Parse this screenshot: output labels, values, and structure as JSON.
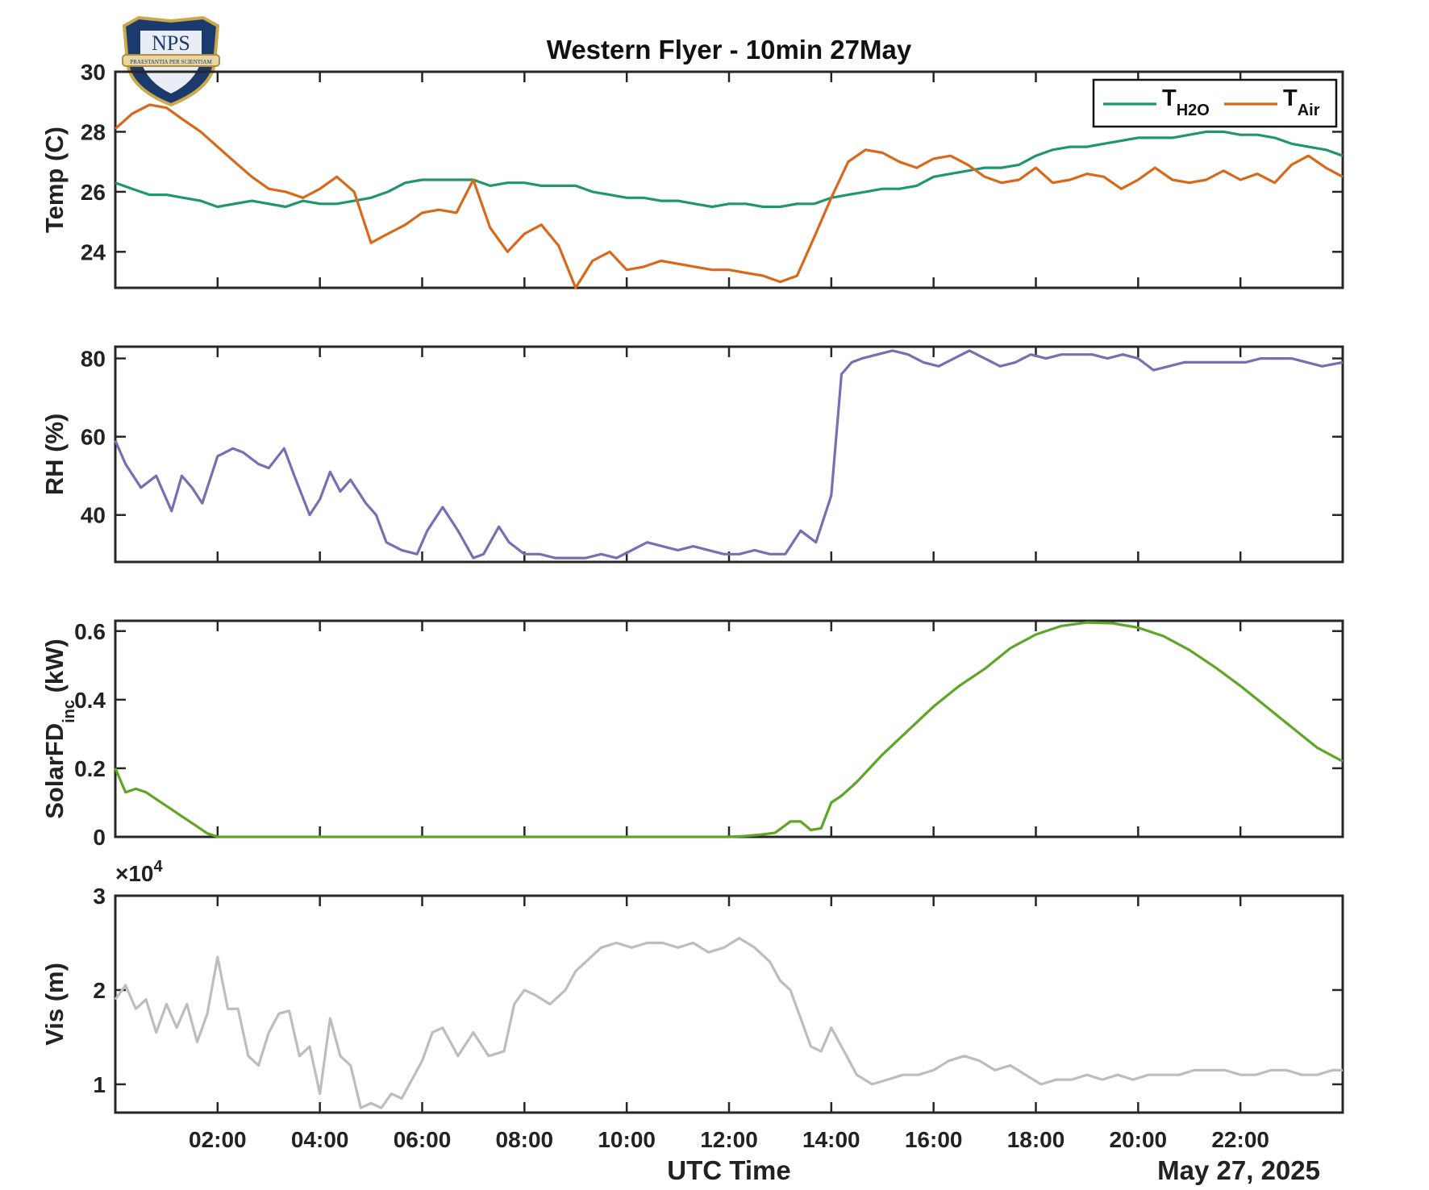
{
  "figure": {
    "title": "Western Flyer - 10min 27May",
    "xlabel": "UTC Time",
    "date_label": "May 27, 2025",
    "x_ticks": [
      "02:00",
      "04:00",
      "06:00",
      "08:00",
      "10:00",
      "12:00",
      "14:00",
      "16:00",
      "18:00",
      "20:00",
      "22:00"
    ],
    "logo": {
      "name": "NPS",
      "motto": "PRAESTANTIA PER SCIENTIAM"
    }
  },
  "colors": {
    "t_h2o": "#1f9670",
    "t_air": "#d9691a",
    "rh": "#7670b3",
    "solar": "#5ea626",
    "vis": "#bdbdbd"
  },
  "chart_data": [
    {
      "type": "line",
      "ylabel": "Temp (C)",
      "ylim": [
        22.8,
        30
      ],
      "yticks": [
        24,
        26,
        28,
        30
      ],
      "xlim_hours": [
        0,
        24
      ],
      "legend": {
        "position": "top-right",
        "entries": [
          {
            "main": "T",
            "sub": "H2O"
          },
          {
            "main": "T",
            "sub": "Air"
          }
        ]
      },
      "series": [
        {
          "name": "T_H2O",
          "color_key": "t_h2o",
          "x": [
            0,
            0.33,
            0.67,
            1,
            1.33,
            1.67,
            2,
            2.33,
            2.67,
            3,
            3.33,
            3.67,
            4,
            4.33,
            4.67,
            5,
            5.33,
            5.67,
            6,
            6.33,
            6.67,
            7,
            7.33,
            7.67,
            8,
            8.33,
            8.67,
            9,
            9.33,
            9.67,
            10,
            10.33,
            10.67,
            11,
            11.33,
            11.67,
            12,
            12.33,
            12.67,
            13,
            13.33,
            13.67,
            14,
            14.33,
            14.67,
            15,
            15.33,
            15.67,
            16,
            16.33,
            16.67,
            17,
            17.33,
            17.67,
            18,
            18.33,
            18.67,
            19,
            19.33,
            19.67,
            20,
            20.33,
            20.67,
            21,
            21.33,
            21.67,
            22,
            22.33,
            22.67,
            23,
            23.33,
            23.67,
            24
          ],
          "y": [
            26.3,
            26.1,
            25.9,
            25.9,
            25.8,
            25.7,
            25.5,
            25.6,
            25.7,
            25.6,
            25.5,
            25.7,
            25.6,
            25.6,
            25.7,
            25.8,
            26.0,
            26.3,
            26.4,
            26.4,
            26.4,
            26.4,
            26.2,
            26.3,
            26.3,
            26.2,
            26.2,
            26.2,
            26.0,
            25.9,
            25.8,
            25.8,
            25.7,
            25.7,
            25.6,
            25.5,
            25.6,
            25.6,
            25.5,
            25.5,
            25.6,
            25.6,
            25.8,
            25.9,
            26.0,
            26.1,
            26.1,
            26.2,
            26.5,
            26.6,
            26.7,
            26.8,
            26.8,
            26.9,
            27.2,
            27.4,
            27.5,
            27.5,
            27.6,
            27.7,
            27.8,
            27.8,
            27.8,
            27.9,
            28.0,
            28.0,
            27.9,
            27.9,
            27.8,
            27.6,
            27.5,
            27.4,
            27.2
          ]
        },
        {
          "name": "T_Air",
          "color_key": "t_air",
          "x": [
            0,
            0.33,
            0.67,
            1,
            1.33,
            1.67,
            2,
            2.33,
            2.67,
            3,
            3.33,
            3.67,
            4,
            4.33,
            4.67,
            5,
            5.33,
            5.67,
            6,
            6.33,
            6.67,
            7,
            7.33,
            7.67,
            8,
            8.33,
            8.67,
            9,
            9.33,
            9.67,
            10,
            10.33,
            10.67,
            11,
            11.33,
            11.67,
            12,
            12.33,
            12.67,
            13,
            13.33,
            13.67,
            14,
            14.33,
            14.67,
            15,
            15.33,
            15.67,
            16,
            16.33,
            16.67,
            17,
            17.33,
            17.67,
            18,
            18.33,
            18.67,
            19,
            19.33,
            19.67,
            20,
            20.33,
            20.67,
            21,
            21.33,
            21.67,
            22,
            22.33,
            22.67,
            23,
            23.33,
            23.67,
            24
          ],
          "y": [
            28.1,
            28.6,
            28.9,
            28.8,
            28.4,
            28.0,
            27.5,
            27.0,
            26.5,
            26.1,
            26.0,
            25.8,
            26.1,
            26.5,
            26.0,
            24.3,
            24.6,
            24.9,
            25.3,
            25.4,
            25.3,
            26.4,
            24.8,
            24.0,
            24.6,
            24.9,
            24.2,
            22.8,
            23.7,
            24.0,
            23.4,
            23.5,
            23.7,
            23.6,
            23.5,
            23.4,
            23.4,
            23.3,
            23.2,
            23.0,
            23.2,
            24.5,
            25.8,
            27.0,
            27.4,
            27.3,
            27.0,
            26.8,
            27.1,
            27.2,
            26.9,
            26.5,
            26.3,
            26.4,
            26.8,
            26.3,
            26.4,
            26.6,
            26.5,
            26.1,
            26.4,
            26.8,
            26.4,
            26.3,
            26.4,
            26.7,
            26.4,
            26.6,
            26.3,
            26.9,
            27.2,
            26.8,
            26.5
          ]
        }
      ]
    },
    {
      "type": "line",
      "ylabel": "RH (%)",
      "ylim": [
        28,
        83
      ],
      "yticks": [
        40,
        60,
        80
      ],
      "xlim_hours": [
        0,
        24
      ],
      "series": [
        {
          "color_key": "rh",
          "x": [
            0,
            0.2,
            0.5,
            0.8,
            1.1,
            1.3,
            1.5,
            1.7,
            2.0,
            2.3,
            2.5,
            2.8,
            3.0,
            3.3,
            3.5,
            3.8,
            4.0,
            4.2,
            4.4,
            4.6,
            4.9,
            5.1,
            5.3,
            5.6,
            5.9,
            6.1,
            6.4,
            6.7,
            7.0,
            7.2,
            7.5,
            7.7,
            8.0,
            8.3,
            8.6,
            8.9,
            9.2,
            9.5,
            9.8,
            10.1,
            10.4,
            10.7,
            11.0,
            11.3,
            11.6,
            11.9,
            12.2,
            12.5,
            12.8,
            13.1,
            13.4,
            13.7,
            14.0,
            14.2,
            14.4,
            14.6,
            14.9,
            15.2,
            15.5,
            15.8,
            16.1,
            16.4,
            16.7,
            17.0,
            17.3,
            17.6,
            17.9,
            18.2,
            18.5,
            18.8,
            19.1,
            19.4,
            19.7,
            20.0,
            20.3,
            20.6,
            20.9,
            21.2,
            21.5,
            21.8,
            22.1,
            22.4,
            22.7,
            23.0,
            23.3,
            23.6,
            24.0
          ],
          "y": [
            59,
            53,
            47,
            50,
            41,
            50,
            47,
            43,
            55,
            57,
            56,
            53,
            52,
            57,
            50,
            40,
            44,
            51,
            46,
            49,
            43,
            40,
            33,
            31,
            30,
            36,
            42,
            36,
            29,
            30,
            37,
            33,
            30,
            30,
            29,
            29,
            29,
            30,
            29,
            31,
            33,
            32,
            31,
            32,
            31,
            30,
            30,
            31,
            30,
            30,
            36,
            33,
            45,
            76,
            79,
            80,
            81,
            82,
            81,
            79,
            78,
            80,
            82,
            80,
            78,
            79,
            81,
            80,
            81,
            81,
            81,
            80,
            81,
            80,
            77,
            78,
            79,
            79,
            79,
            79,
            79,
            80,
            80,
            80,
            79,
            78,
            79
          ]
        }
      ]
    },
    {
      "type": "line",
      "ylabel": "SolarFD",
      "ylabel_sub": "inc",
      "ylabel_unit": " (kW)",
      "ylim": [
        0,
        0.63
      ],
      "yticks": [
        0,
        0.2,
        0.4,
        0.6
      ],
      "xlim_hours": [
        0,
        24
      ],
      "series": [
        {
          "color_key": "solar",
          "x": [
            0,
            0.2,
            0.4,
            0.6,
            0.8,
            1.0,
            1.2,
            1.4,
            1.6,
            1.8,
            2.0,
            2.5,
            3,
            4,
            5,
            6,
            7,
            8,
            9,
            10,
            11,
            12,
            12.3,
            12.6,
            12.9,
            13.2,
            13.4,
            13.6,
            13.8,
            14.0,
            14.2,
            14.5,
            15.0,
            15.5,
            16.0,
            16.5,
            17.0,
            17.5,
            18.0,
            18.5,
            19.0,
            19.5,
            20.0,
            20.5,
            21.0,
            21.5,
            22.0,
            22.5,
            23.0,
            23.5,
            24.0
          ],
          "y": [
            0.2,
            0.13,
            0.14,
            0.13,
            0.11,
            0.09,
            0.07,
            0.05,
            0.03,
            0.01,
            0.0,
            0,
            0,
            0,
            0,
            0,
            0,
            0,
            0,
            0,
            0,
            0,
            0.002,
            0.006,
            0.012,
            0.045,
            0.045,
            0.02,
            0.025,
            0.1,
            0.12,
            0.16,
            0.24,
            0.31,
            0.38,
            0.44,
            0.49,
            0.55,
            0.59,
            0.615,
            0.625,
            0.623,
            0.61,
            0.585,
            0.545,
            0.495,
            0.44,
            0.38,
            0.32,
            0.26,
            0.22
          ]
        }
      ]
    },
    {
      "type": "line",
      "ylabel": "Vis (m)",
      "exponent": "×10",
      "exponent_power": "4",
      "ylim": [
        7000,
        30000
      ],
      "yticks": [
        10000,
        20000,
        30000
      ],
      "ytick_labels": [
        "1",
        "2",
        "3"
      ],
      "xlim_hours": [
        0,
        24
      ],
      "series": [
        {
          "color_key": "vis",
          "x": [
            0,
            0.2,
            0.4,
            0.6,
            0.8,
            1.0,
            1.2,
            1.4,
            1.6,
            1.8,
            2.0,
            2.2,
            2.4,
            2.6,
            2.8,
            3.0,
            3.2,
            3.4,
            3.6,
            3.8,
            4.0,
            4.2,
            4.4,
            4.6,
            4.8,
            5.0,
            5.2,
            5.4,
            5.6,
            5.8,
            6.0,
            6.2,
            6.4,
            6.7,
            7.0,
            7.3,
            7.6,
            7.8,
            8.0,
            8.2,
            8.5,
            8.8,
            9.0,
            9.2,
            9.5,
            9.8,
            10.1,
            10.4,
            10.7,
            11.0,
            11.3,
            11.6,
            11.9,
            12.2,
            12.5,
            12.8,
            13.0,
            13.2,
            13.4,
            13.6,
            13.8,
            14.0,
            14.2,
            14.5,
            14.8,
            15.1,
            15.4,
            15.7,
            16.0,
            16.3,
            16.6,
            16.9,
            17.2,
            17.5,
            17.8,
            18.1,
            18.4,
            18.7,
            19.0,
            19.3,
            19.6,
            19.9,
            20.2,
            20.5,
            20.8,
            21.1,
            21.4,
            21.7,
            22.0,
            22.3,
            22.6,
            22.9,
            23.2,
            23.5,
            23.8,
            24.0
          ],
          "y": [
            19000,
            20500,
            18000,
            19000,
            15500,
            18500,
            16000,
            18500,
            14500,
            17500,
            23500,
            18000,
            18000,
            13000,
            12000,
            15500,
            17500,
            17800,
            13000,
            14000,
            9000,
            17000,
            13000,
            12000,
            7500,
            8000,
            7500,
            9000,
            8500,
            10500,
            12500,
            15500,
            16000,
            13000,
            15500,
            13000,
            13500,
            18500,
            20000,
            19500,
            18500,
            20000,
            22000,
            23000,
            24500,
            25000,
            24500,
            25000,
            25000,
            24500,
            25000,
            24000,
            24500,
            25500,
            24500,
            23000,
            21000,
            20000,
            17000,
            14000,
            13500,
            16000,
            14000,
            11000,
            10000,
            10500,
            11000,
            11000,
            11500,
            12500,
            13000,
            12500,
            11500,
            12000,
            11000,
            10000,
            10500,
            10500,
            11000,
            10500,
            11000,
            10500,
            11000,
            11000,
            11000,
            11500,
            11500,
            11500,
            11000,
            11000,
            11500,
            11500,
            11000,
            11000,
            11500,
            11500
          ]
        }
      ]
    }
  ]
}
